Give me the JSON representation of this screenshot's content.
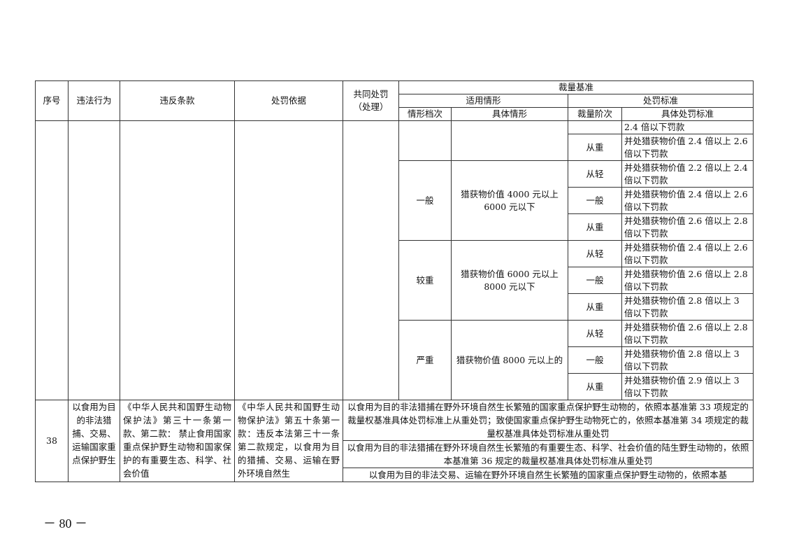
{
  "header": {
    "seq": "序号",
    "act": "违法行为",
    "clause": "违反条款",
    "basis": "处罚依据",
    "joint": "共同处罚（处理）",
    "discretion": "裁量基准",
    "applicable": "适用情形",
    "standard": "处罚标准",
    "level": "情形档次",
    "situation": "具体情形",
    "stage": "裁量阶次",
    "specific": "具体处罚标准"
  },
  "cont": {
    "r0": "2.4 倍以下罚款",
    "r1_stage": "从重",
    "r1_std": "并处猎获物价值 2.4 倍以上 2.6 倍以下罚款",
    "groups": [
      {
        "level": "一般",
        "situation": "猎获物价值 4000 元以上 6000 元以下",
        "rows": [
          {
            "stage": "从轻",
            "std": "并处猎获物价值 2.2 倍以上 2.4 倍以下罚款"
          },
          {
            "stage": "一般",
            "std": "并处猎获物价值 2.4 倍以上 2.6 倍以下罚款"
          },
          {
            "stage": "从重",
            "std": "并处猎获物价值 2.6 倍以上 2.8 倍以下罚款"
          }
        ]
      },
      {
        "level": "较重",
        "situation": "猎获物价值 6000 元以上 8000 元以下",
        "rows": [
          {
            "stage": "从轻",
            "std": "并处猎获物价值 2.4 倍以上 2.6 倍以下罚款"
          },
          {
            "stage": "一般",
            "std": "并处猎获物价值 2.6 倍以上 2.8 倍以下罚款"
          },
          {
            "stage": "从重",
            "std": "并处猎获物价值 2.8 倍以上 3 倍以下罚款"
          }
        ]
      },
      {
        "level": "严重",
        "situation": "猎获物价值 8000 元以上的",
        "rows": [
          {
            "stage": "从轻",
            "std": "并处猎获物价值 2.6 倍以上 2.8 倍以下罚款"
          },
          {
            "stage": "一般",
            "std": "并处猎获物价值 2.8 倍以上 3 倍以下罚款"
          },
          {
            "stage": "从重",
            "std": "并处猎获物价值 2.9 倍以上 3 倍以下罚款"
          }
        ]
      }
    ]
  },
  "row38": {
    "seq": "38",
    "act": "以食用为目的非法猎捕、交易、运输国家重点保护野生",
    "clause": "《中华人民共和国野生动物保护法》第三十一条第一款、第二款： 禁止食用国家重点保护野生动物和国家保护的有重要生态、科学、社会价值",
    "basis": "《中华人民共和国野生动物保护法》第五十条第一款：违反本法第三十一条第二款规定，以食用为目的猎捕、交易、运输在野外环境自然生",
    "notes": [
      "以食用为目的非法猎捕在野外环境自然生长繁殖的国家重点保护野生动物的，依照本基准第 33 项规定的裁量权基准具体处罚标准上从重处罚；致使国家重点保护野生动物死亡的，依照本基准第 34 项规定的裁量权基准具体处罚标准从重处罚",
      "以食用为目的非法猎捕在野外环境自然生长繁殖的有重要生态、科学、社会价值的陆生野生动物的，依照本基准第 36 规定的裁量权基准具体处罚标准从重处罚",
      "以食用为目的非法交易、运输在野外环境自然生长繁殖的国家重点保护野生动物的，依照本基"
    ]
  },
  "page_number": "－ 80 －"
}
